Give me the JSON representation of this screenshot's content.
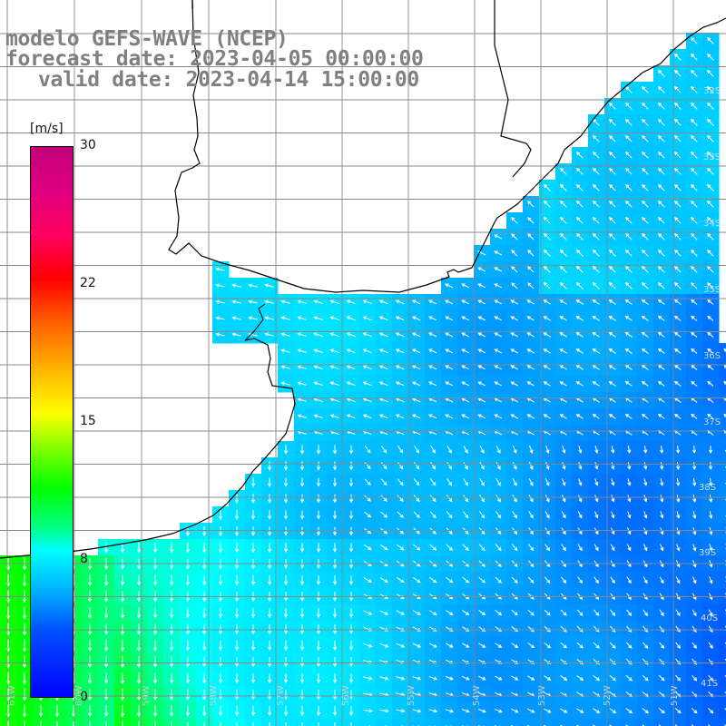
{
  "title": {
    "line1": "modelo GEFS-WAVE (NCEP)",
    "line2": "forecast date: 2023-04-05 00:00:00",
    "line3": "valid date: 2023-04-14 15:00:00"
  },
  "colorbar": {
    "units": "[m/s]",
    "ticks": [
      "30",
      "22",
      "15",
      "8",
      "0"
    ],
    "tick_values": [
      30,
      22,
      15,
      8,
      0
    ],
    "min": 0,
    "max": 30
  },
  "map": {
    "lat_labels": [
      "32S",
      "33S",
      "34S",
      "35S",
      "36S",
      "37S",
      "38S",
      "39S",
      "40S",
      "41S"
    ],
    "lon_labels": [
      "61W",
      "60W",
      "59W",
      "58W",
      "57W",
      "56W",
      "55W",
      "54W",
      "53W",
      "52W",
      "51W"
    ],
    "field": "wind speed",
    "vector_color": "#ffffff",
    "coastline_color": "#000000",
    "grid_color": "#888888",
    "land_color": "#ffffff"
  }
}
